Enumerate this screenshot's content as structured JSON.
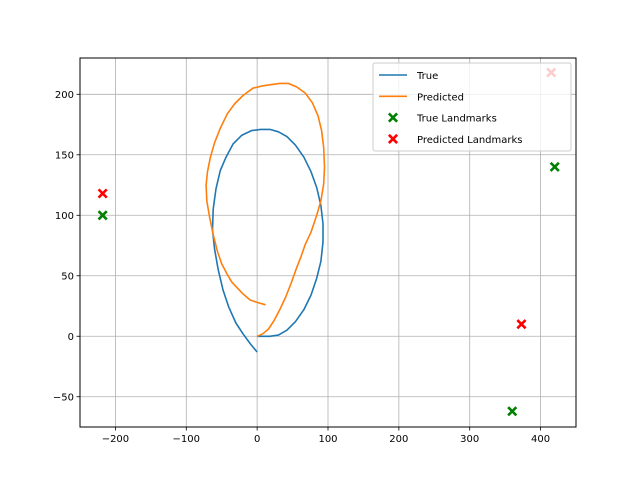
{
  "chart_data": {
    "type": "line",
    "title": "",
    "xlabel": "",
    "ylabel": "",
    "xlim": [
      -250,
      450
    ],
    "ylim": [
      -75,
      230
    ],
    "grid": true,
    "legend_position": "top-right",
    "x_ticks": [
      -200,
      -100,
      0,
      100,
      200,
      300,
      400
    ],
    "y_ticks": [
      -50,
      0,
      50,
      100,
      150,
      200
    ],
    "series": [
      {
        "name": "True",
        "kind": "line",
        "color": "#1f77b4",
        "points": [
          [
            0,
            -13
          ],
          [
            -10,
            -6
          ],
          [
            -20,
            2
          ],
          [
            -30,
            11
          ],
          [
            -40,
            24
          ],
          [
            -48,
            38
          ],
          [
            -55,
            55
          ],
          [
            -60,
            72
          ],
          [
            -63,
            88
          ],
          [
            -62,
            105
          ],
          [
            -58,
            122
          ],
          [
            -52,
            137
          ],
          [
            -44,
            148
          ],
          [
            -34,
            159
          ],
          [
            -22,
            166
          ],
          [
            -8,
            170
          ],
          [
            5,
            171
          ],
          [
            18,
            171
          ],
          [
            30,
            169
          ],
          [
            42,
            165
          ],
          [
            54,
            158
          ],
          [
            66,
            148
          ],
          [
            76,
            136
          ],
          [
            84,
            123
          ],
          [
            90,
            108
          ],
          [
            93,
            93
          ],
          [
            93,
            78
          ],
          [
            90,
            62
          ],
          [
            84,
            48
          ],
          [
            76,
            34
          ],
          [
            66,
            22
          ],
          [
            54,
            12
          ],
          [
            42,
            5
          ],
          [
            30,
            1
          ],
          [
            18,
            0
          ],
          [
            8,
            0
          ],
          [
            0,
            0
          ]
        ]
      },
      {
        "name": "Predicted",
        "kind": "line",
        "color": "#ff7f0e",
        "points": [
          [
            0,
            0
          ],
          [
            8,
            2
          ],
          [
            16,
            6
          ],
          [
            24,
            13
          ],
          [
            32,
            22
          ],
          [
            40,
            32
          ],
          [
            48,
            44
          ],
          [
            56,
            57
          ],
          [
            62,
            66
          ],
          [
            68,
            76
          ],
          [
            76,
            86
          ],
          [
            84,
            100
          ],
          [
            90,
            112
          ],
          [
            94,
            126
          ],
          [
            95,
            140
          ],
          [
            94,
            156
          ],
          [
            91,
            170
          ],
          [
            86,
            182
          ],
          [
            78,
            193
          ],
          [
            68,
            201
          ],
          [
            56,
            206
          ],
          [
            44,
            209
          ],
          [
            32,
            209
          ],
          [
            20,
            208
          ],
          [
            8,
            207
          ],
          [
            -6,
            205
          ],
          [
            -20,
            199
          ],
          [
            -32,
            192
          ],
          [
            -42,
            184
          ],
          [
            -52,
            172
          ],
          [
            -60,
            160
          ],
          [
            -66,
            148
          ],
          [
            -70,
            136
          ],
          [
            -72,
            125
          ],
          [
            -71,
            112
          ],
          [
            -67,
            98
          ],
          [
            -62,
            84
          ],
          [
            -56,
            70
          ],
          [
            -50,
            60
          ],
          [
            -43,
            52
          ],
          [
            -36,
            45
          ],
          [
            -28,
            40
          ],
          [
            -20,
            35
          ],
          [
            -10,
            30
          ],
          [
            0,
            28
          ],
          [
            12,
            26
          ]
        ]
      },
      {
        "name": "True Landmarks",
        "kind": "marker",
        "color": "#008000",
        "points": [
          [
            -218,
            100
          ],
          [
            420,
            140
          ],
          [
            360,
            -62
          ]
        ]
      },
      {
        "name": "Predicted Landmarks",
        "kind": "marker",
        "color": "#ff0000",
        "points": [
          [
            -218,
            118
          ],
          [
            415,
            218
          ],
          [
            373,
            10
          ]
        ]
      }
    ]
  }
}
